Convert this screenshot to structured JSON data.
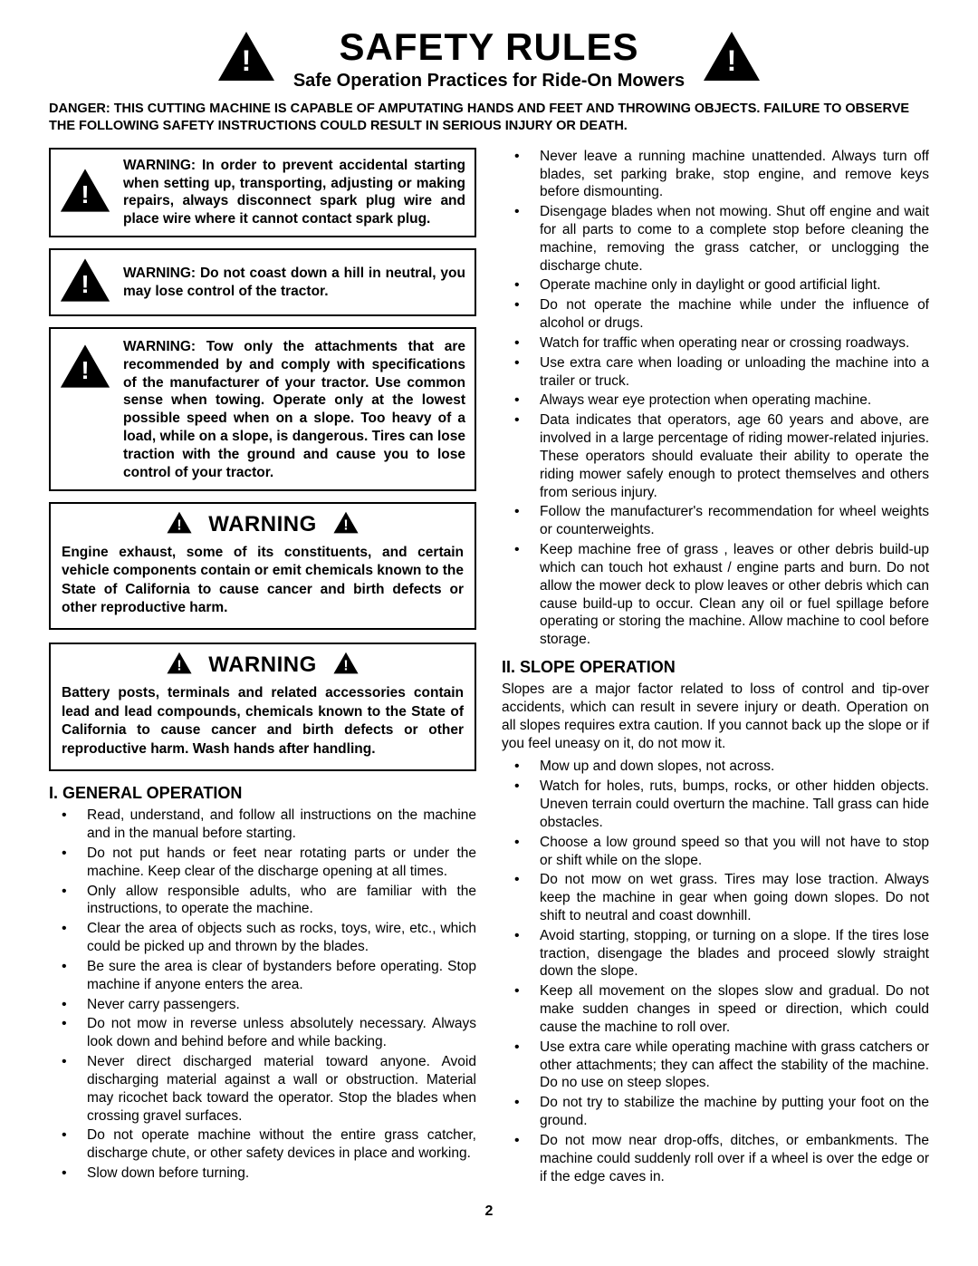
{
  "header": {
    "title": "SAFETY RULES",
    "subtitle": "Safe Operation Practices for Ride-On Mowers"
  },
  "danger": "DANGER:  THIS CUTTING MACHINE IS CAPABLE OF AMPUTATING HANDS AND FEET AND THROWING OBJECTS.  FAILURE TO OBSERVE THE FOLLOWING SAFETY INSTRUCTIONS COULD RESULT IN SERIOUS INJURY OR DEATH.",
  "warn_boxes": [
    "WARNING: In order to prevent accidental starting when setting up, transporting, adjusting or making repairs, always disconnect spark plug wire and place wire where it cannot contact spark plug.",
    "WARNING: Do not coast down a hill in neutral, you may lose control of the tractor.",
    "WARNING: Tow only the attachments that are recommended by and comply with specifications of the manufacturer of your tractor. Use common sense when towing. Operate only at the lowest possible speed when on a slope.  Too heavy of a load, while on a slope, is dangerous.  Tires can lose traction with the ground and cause you to lose control of your tractor."
  ],
  "warning_blocks": [
    {
      "label": "WARNING",
      "body": "Engine exhaust, some of its constituents, and certain vehicle components contain or emit chemicals known to the State of California to cause cancer and birth defects or other reproductive harm."
    },
    {
      "label": "WARNING",
      "body": "Battery posts, terminals and related accessories contain lead and lead compounds, chemicals known to the State of California to cause cancer and birth defects or other reproductive harm. Wash hands after handling."
    }
  ],
  "section1": {
    "title": "I. GENERAL OPERATION",
    "items_left": [
      "Read, understand, and follow all instructions on the machine and in the manual before starting.",
      "Do not put hands or feet near rotating parts or under the machine. Keep clear of the discharge opening at all times.",
      "Only allow responsible adults, who are familiar with the instructions, to operate the machine.",
      "Clear the area of objects such as rocks, toys, wire, etc., which could be picked up and thrown by the blades.",
      "Be sure the area is clear of bystanders before operating.  Stop machine if anyone enters the area.",
      "Never carry passengers.",
      "Do not mow in reverse unless absolutely necessary. Always look down and behind before and while backing.",
      "Never direct discharged material toward anyone. Avoid discharging material against a wall or obstruction. Material may ricochet back toward the operator. Stop the blades when crossing gravel surfaces.",
      "Do not operate machine without the entire grass catcher, discharge chute, or other safety devices in place and working.",
      "Slow down before turning."
    ],
    "items_right": [
      "Never leave a running machine unattended.  Always turn off blades, set parking brake, stop engine, and remove keys before dismounting.",
      "Disengage blades when not mowing. Shut off engine and wait for all parts to come to a complete stop before cleaning the machine, removing the grass catcher, or unclogging the discharge chute.",
      "Operate machine only in daylight or good artificial light.",
      "Do not operate the machine while under the influence of alcohol or drugs.",
      "Watch for traffic when operating near or crossing roadways.",
      "Use extra care when loading or unloading the machine into a trailer or truck.",
      "Always wear eye protection when operating machine.",
      "Data indicates that operators, age 60 years and above, are involved in a large percentage of riding mower-related injuries.  These operators should evaluate their ability to operate the riding mower safely enough to protect themselves and others from serious injury.",
      "Follow the manufacturer's recommendation for wheel weights or counterweights.",
      "Keep machine free of grass , leaves or other debris build-up which can touch hot exhaust / engine parts and burn. Do not allow the mower deck to plow leaves or other debris which can cause build-up to occur. Clean any oil or fuel spillage before operating or storing the machine. Allow machine to cool before storage."
    ]
  },
  "section2": {
    "title": "II. SLOPE OPERATION",
    "intro": "Slopes are a major factor related to loss of control and tip-over accidents, which can result in severe injury or death. Operation on all slopes requires extra caution.  If you cannot back up the slope or if you feel uneasy on it, do not mow it.",
    "items": [
      "Mow up and down slopes, not across.",
      "Watch for holes, ruts, bumps, rocks, or other hidden objects.  Uneven terrain could overturn the machine. Tall grass can hide obstacles.",
      "Choose a low ground speed so that you will not have to stop or shift while on the slope.",
      "Do not mow on wet grass. Tires may lose traction.  Always keep the machine in gear when going down slopes. Do not shift to neutral and coast downhill.",
      "Avoid starting, stopping, or turning on a slope.  If the tires lose traction,  disengage the blades and proceed slowly straight down the slope.",
      "Keep all movement on the slopes slow and gradual. Do not make sudden changes in speed or direction, which could cause the machine to roll over.",
      "Use extra care while operating machine with grass catchers or other attachments; they can affect the stability of the machine. Do no use on steep slopes.",
      "Do not  try to stabilize the machine by putting your foot on the ground.",
      "Do not mow near drop-offs, ditches, or embankments. The machine could suddenly roll over if a wheel is over the edge or if the edge caves in."
    ]
  },
  "page_number": "2",
  "icons": {
    "large_size": 64,
    "med_size": 56,
    "small_size": 28,
    "fill": "#000000",
    "bang_fill": "#ffffff"
  }
}
